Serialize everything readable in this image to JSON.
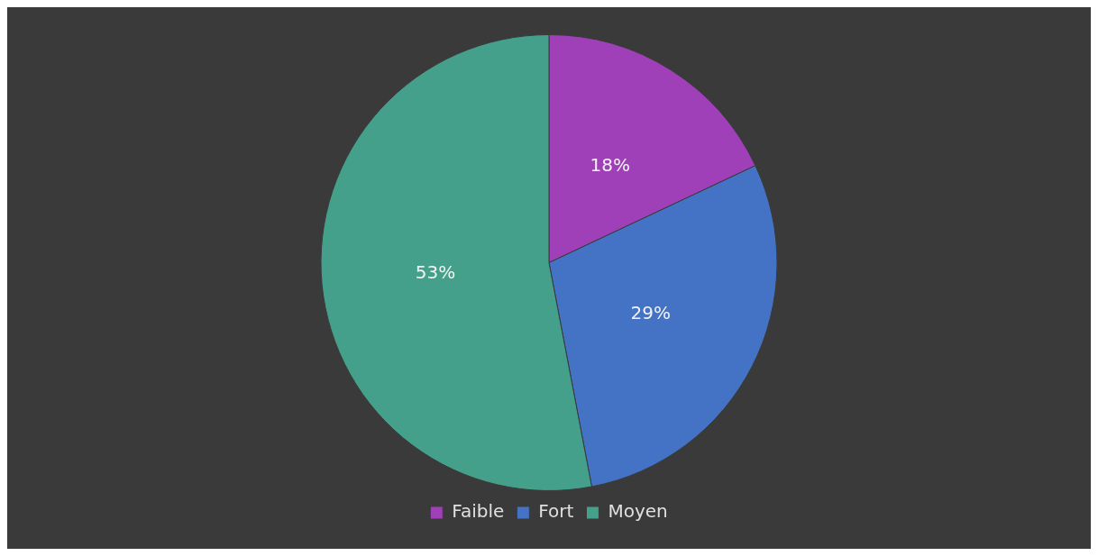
{
  "chart_data": {
    "type": "pie",
    "categories": [
      "Faible",
      "Fort",
      "Moyen"
    ],
    "values": [
      18,
      29,
      53
    ],
    "colors": [
      "#a040b8",
      "#4472c4",
      "#44a08a"
    ],
    "value_labels": [
      "18%",
      "29%",
      "53%"
    ],
    "legend": "bottom"
  }
}
